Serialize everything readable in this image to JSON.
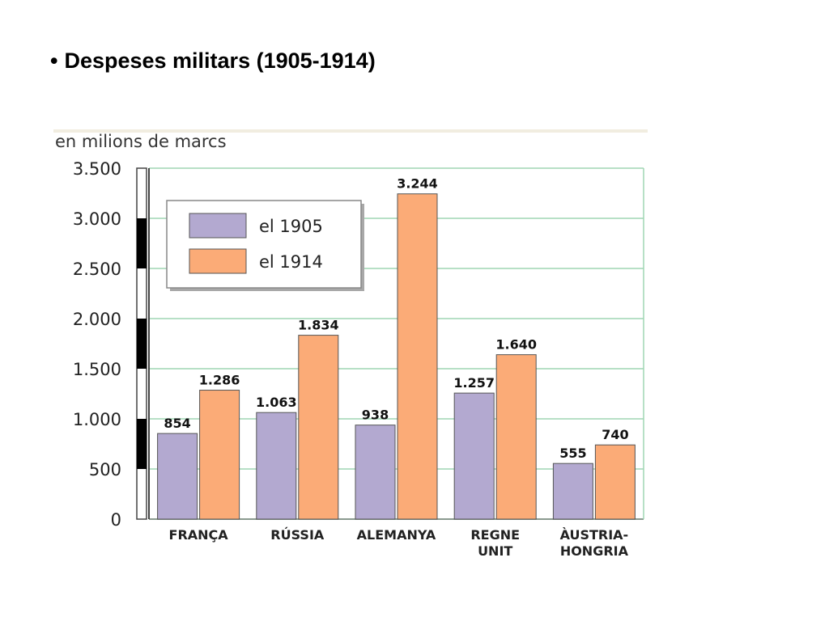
{
  "slide": {
    "bullet": "•",
    "title": "Despeses militars (1905-1914)"
  },
  "chart_data": {
    "type": "bar",
    "unit_label": "en milions de marcs",
    "categories": [
      [
        "FRANÇA"
      ],
      [
        "RÚSSIA"
      ],
      [
        "ALEMANYA"
      ],
      [
        "REGNE",
        "UNIT"
      ],
      [
        "ÀUSTRIA-",
        "HONGRIA"
      ]
    ],
    "series": [
      {
        "name": "el 1905",
        "color": "#b3a9d0",
        "values": [
          854,
          1063,
          938,
          1257,
          555
        ],
        "value_labels": [
          "854",
          "1.063",
          "938",
          "1.257",
          "555"
        ]
      },
      {
        "name": "el 1914",
        "color": "#fbab77",
        "values": [
          1286,
          1834,
          3244,
          1640,
          740
        ],
        "value_labels": [
          "1.286",
          "1.834",
          "3.244",
          "1.640",
          "740"
        ]
      }
    ],
    "ylim": [
      0,
      3500
    ],
    "yticks": [
      0,
      500,
      1000,
      1500,
      2000,
      2500,
      3000,
      3500
    ],
    "ytick_labels": [
      "0",
      "500",
      "1.000",
      "1.500",
      "2.000",
      "2.500",
      "3.000",
      "3.500"
    ],
    "grid": true,
    "grid_color": "#9fd6b3",
    "legend_position": "top-left"
  }
}
